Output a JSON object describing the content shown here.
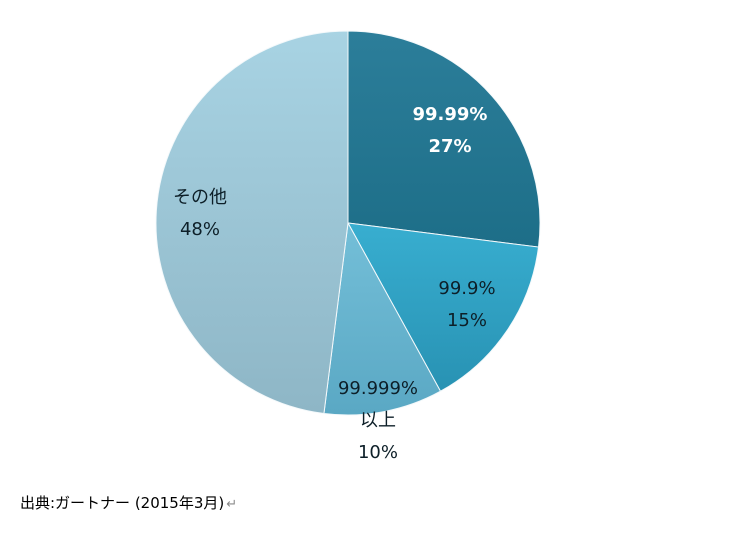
{
  "chart_data": {
    "type": "pie",
    "slices": [
      {
        "name": "99.99%",
        "value": 27,
        "percent_label": "27%",
        "color_top": "#2c7e9a",
        "color_bottom": "#1d6e88",
        "label_color": "#ffffff",
        "bold": true
      },
      {
        "name": "99.9%",
        "value": 15,
        "percent_label": "15%",
        "color_top": "#38aed0",
        "color_bottom": "#2892b3",
        "label_color": "#0d1f28",
        "bold": false
      },
      {
        "name": "99.999% 以上",
        "name_lines": [
          "99.999%",
          "以上"
        ],
        "value": 10,
        "percent_label": "10%",
        "color_top": "#74bfd8",
        "color_bottom": "#5aa8c4",
        "label_color": "#0d1f28",
        "bold": false
      },
      {
        "name": "その他",
        "value": 48,
        "percent_label": "48%",
        "color_top": "#a8d3e3",
        "color_bottom": "#8eb6c6",
        "label_color": "#0d1f28",
        "bold": false
      }
    ],
    "start_angle_deg": 0,
    "direction": "clockwise",
    "legend": "none"
  },
  "footer": {
    "source": "出典:ガートナー (2015年3月)",
    "return_mark": "↵"
  }
}
